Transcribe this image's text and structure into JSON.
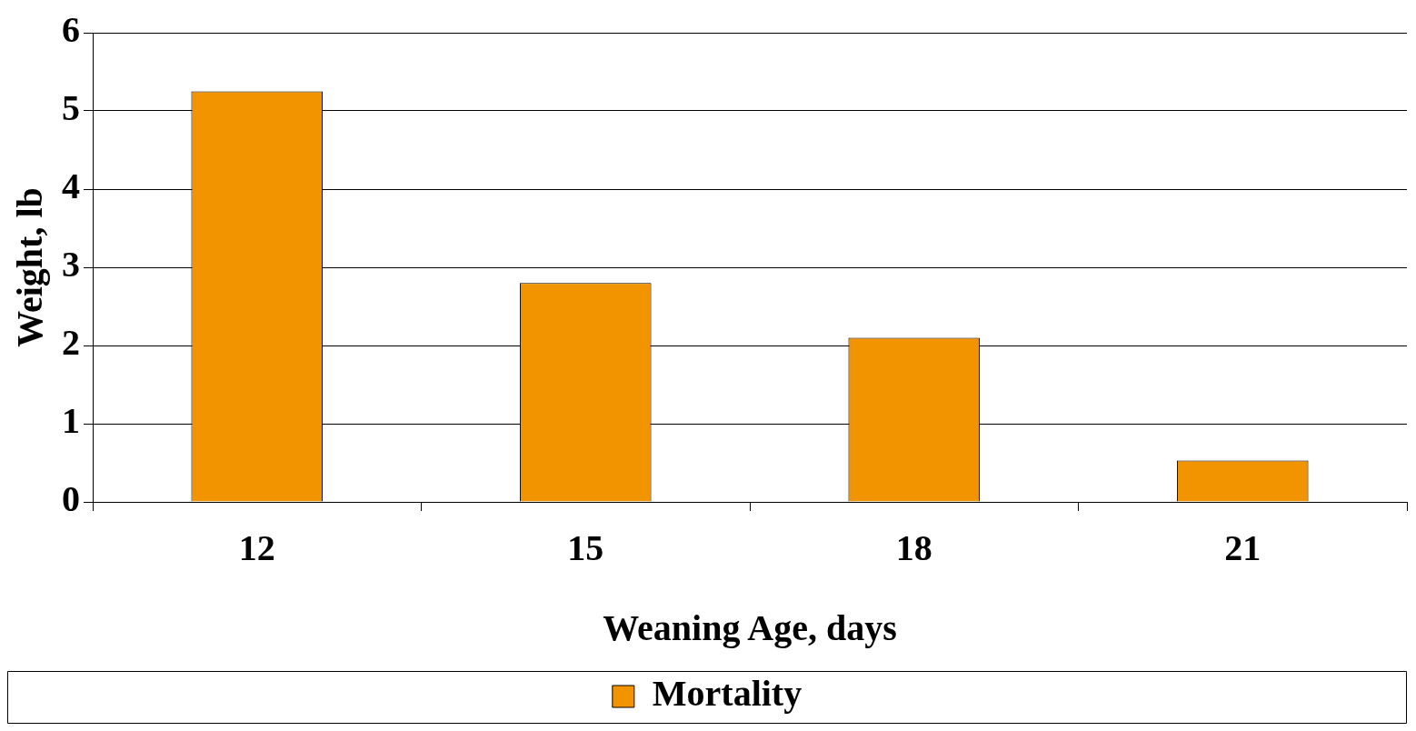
{
  "chart_data": {
    "type": "bar",
    "categories": [
      "12",
      "15",
      "18",
      "21"
    ],
    "xlabel": "Weaning Age, days",
    "ylabel": "Weight, lb",
    "series": [
      {
        "name": "Mortality",
        "color": "#f29400",
        "values": [
          5.25,
          2.8,
          2.1,
          0.53
        ]
      }
    ],
    "ylim": [
      0,
      6
    ],
    "yticks": [
      0,
      1,
      2,
      3,
      4,
      5,
      6
    ],
    "grid": "y",
    "legend": "bottom"
  }
}
